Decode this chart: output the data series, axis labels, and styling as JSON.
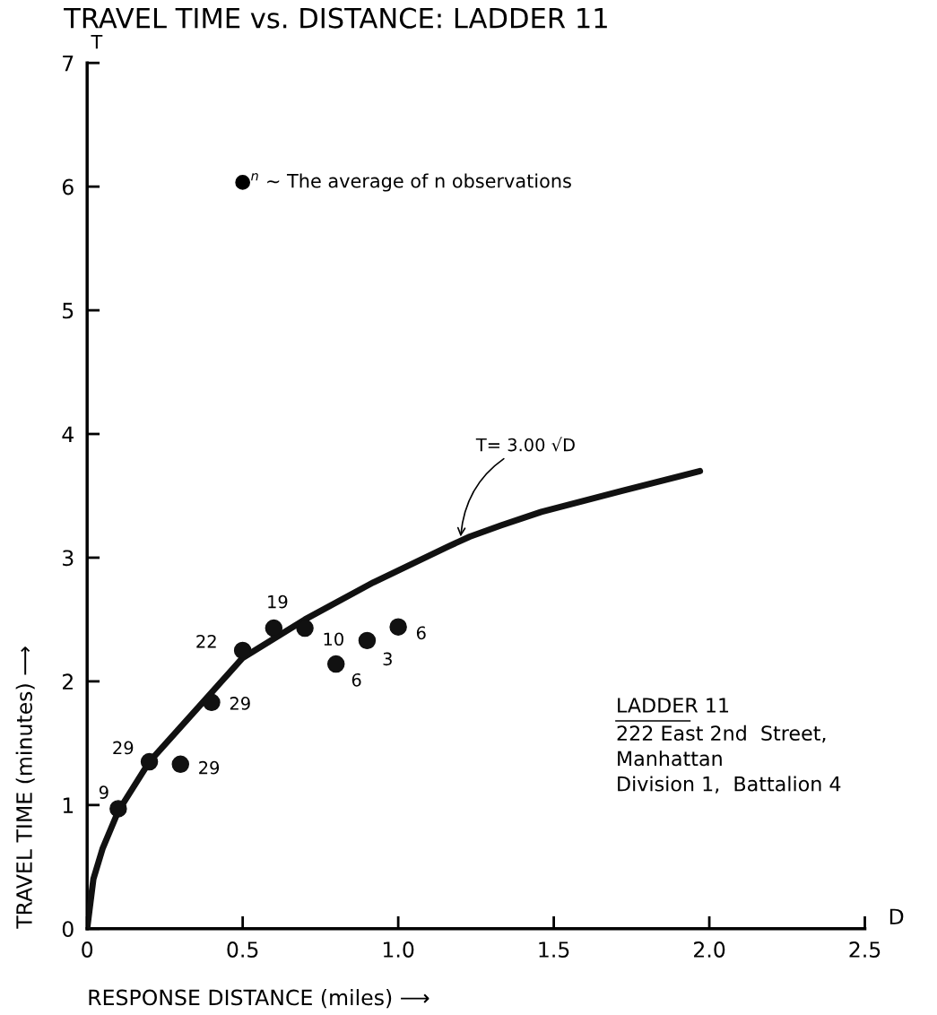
{
  "chart_data": {
    "type": "scatter",
    "title": "TRAVEL TIME vs. DISTANCE: LADDER 11",
    "xlabel": "RESPONSE DISTANCE (miles) ⟶",
    "ylabel": "TRAVEL TIME (minutes) ⟶",
    "xlim": [
      0,
      2.5
    ],
    "ylim": [
      0,
      7
    ],
    "xticks": [
      0,
      0.5,
      {
        "value": 1,
        "label": "1.0"
      },
      1.5,
      {
        "value": 2,
        "label": "2.0"
      },
      2.5
    ],
    "yticks": [
      0,
      1,
      2,
      3,
      4,
      5,
      6,
      7
    ],
    "grid": false,
    "series": [
      {
        "color": "#111111",
        "marker": "circle",
        "x": [
          0.1,
          0.2,
          0.3,
          0.4,
          0.5,
          0.6,
          0.7,
          0.8,
          0.9,
          1.0
        ],
        "values": [
          0.97,
          1.35,
          1.33,
          1.83,
          2.25,
          2.43,
          2.43,
          2.14,
          2.33,
          2.44
        ]
      },
      {
        "type": "line",
        "color": "#111111",
        "marker": "none",
        "line_style": "solid",
        "x": [
          0,
          0.02,
          0.05,
          0.1,
          0.2,
          0.4,
          0.5,
          0.7,
          0.92,
          1.16,
          1.23,
          1.33,
          1.46,
          1.72,
          1.97
        ],
        "values": [
          0,
          0.4,
          0.65,
          0.95,
          1.35,
          1.91,
          2.19,
          2.5,
          2.8,
          3.09,
          3.17,
          3.26,
          3.37,
          3.54,
          3.7
        ]
      }
    ],
    "annotations": [
      {
        "text": "9",
        "x": 0.1,
        "y": 0.97
      },
      {
        "text": "29",
        "x": 0.2,
        "y": 1.35
      },
      {
        "text": "29",
        "x": 0.3,
        "y": 1.33
      },
      {
        "text": "29",
        "x": 0.4,
        "y": 1.83
      },
      {
        "text": "22",
        "x": 0.5,
        "y": 2.25
      },
      {
        "text": "19",
        "x": 0.6,
        "y": 2.43
      },
      {
        "text": "10",
        "x": 0.7,
        "y": 2.43
      },
      {
        "text": "6",
        "x": 0.8,
        "y": 2.14
      },
      {
        "text": "3",
        "x": 0.9,
        "y": 2.33
      },
      {
        "text": "6",
        "x": 1.0,
        "y": 2.44
      },
      {
        "text": "T= 3.00 √D",
        "x": 1.2,
        "y": 3.15
      },
      "T",
      "D",
      "$^{n}$ ~ The average of n observations",
      "LADDER 11",
      "222 East 2nd  Street,\nManhattan\nDivision 1,  Battalion 4"
    ]
  }
}
